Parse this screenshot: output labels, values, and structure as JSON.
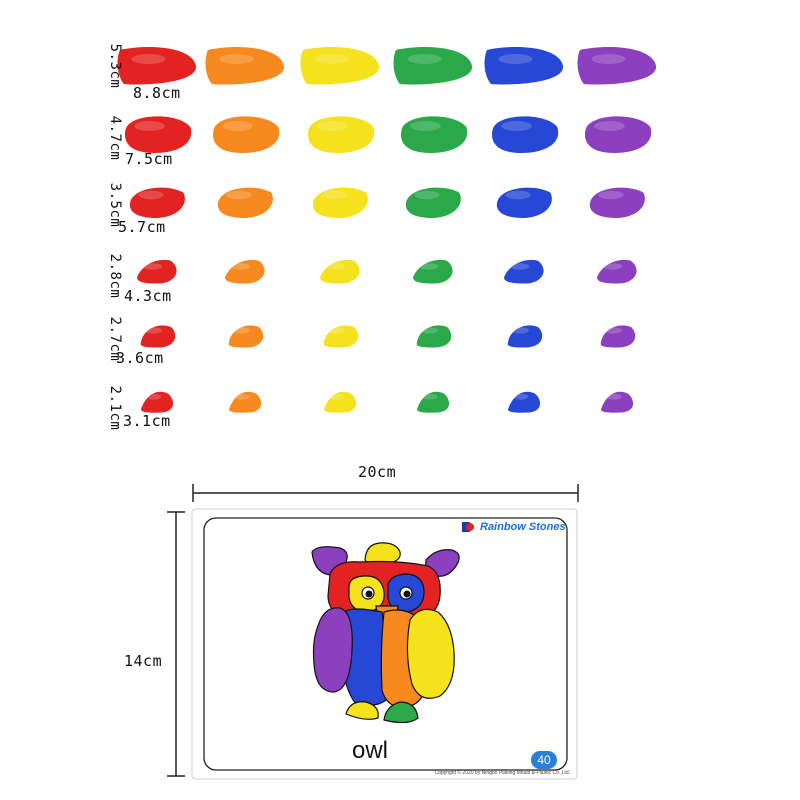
{
  "sizes": [
    {
      "height": "5.3cm",
      "width": "8.8cm"
    },
    {
      "height": "4.7cm",
      "width": "7.5cm"
    },
    {
      "height": "3.5cm",
      "width": "5.7cm"
    },
    {
      "height": "2.8cm",
      "width": "4.3cm"
    },
    {
      "height": "2.7cm",
      "width": "3.6cm"
    },
    {
      "height": "2.1cm",
      "width": "3.1cm"
    }
  ],
  "colors": [
    "#e32222",
    "#f7891f",
    "#f5e21c",
    "#2aa84a",
    "#2748d6",
    "#8c3fbf"
  ],
  "card": {
    "width_label": "20cm",
    "height_label": "14cm",
    "brand": "Rainbow Stones",
    "word": "owl",
    "number": "40",
    "copyright": "Copyright © 2020 by Ningbo Plaking Mould & Plastic Co.,Ltd."
  }
}
